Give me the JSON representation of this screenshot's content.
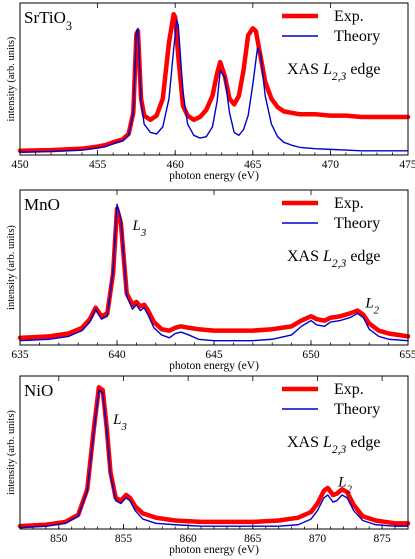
{
  "chart_data": [
    {
      "type": "line",
      "sample": "SrTiO",
      "sample_sub": "3",
      "xlabel": "photon energy (eV)",
      "ylabel": "intensity (arb. units)",
      "xlim": [
        450,
        475
      ],
      "xticks": [
        450,
        455,
        460,
        465,
        470,
        475
      ],
      "ylim": [
        0,
        1.08
      ],
      "grid": false,
      "legend": {
        "placement": "top-right",
        "edge_label": "XAS ",
        "edge_sym": "L",
        "edge_sub": "2,3",
        "edge_tail": " edge"
      },
      "peak_labels": [],
      "series": [
        {
          "name": "Exp.",
          "color": "#ff0000",
          "width": 4.5,
          "x": [
            450.0,
            452.0,
            454.0,
            455.0,
            455.5,
            456.0,
            456.3,
            456.6,
            457.0,
            457.3,
            457.5,
            457.6,
            457.8,
            458.0,
            458.4,
            458.8,
            459.2,
            459.6,
            459.9,
            460.0,
            460.2,
            460.5,
            460.8,
            461.2,
            461.6,
            462.0,
            462.4,
            462.7,
            462.9,
            463.2,
            463.5,
            463.8,
            464.1,
            464.4,
            464.7,
            465.0,
            465.2,
            465.5,
            465.8,
            466.2,
            466.6,
            467.0,
            467.5,
            468.0,
            469.0,
            470.0,
            471.0,
            472.0,
            473.0,
            474.0,
            475.0
          ],
          "y": [
            0.03,
            0.035,
            0.045,
            0.06,
            0.07,
            0.09,
            0.1,
            0.11,
            0.15,
            0.3,
            0.86,
            0.88,
            0.4,
            0.28,
            0.25,
            0.28,
            0.4,
            0.8,
            1.0,
            0.98,
            0.7,
            0.35,
            0.28,
            0.25,
            0.27,
            0.32,
            0.42,
            0.58,
            0.66,
            0.56,
            0.4,
            0.36,
            0.42,
            0.6,
            0.85,
            0.9,
            0.88,
            0.7,
            0.52,
            0.4,
            0.34,
            0.31,
            0.3,
            0.29,
            0.29,
            0.28,
            0.28,
            0.27,
            0.27,
            0.27,
            0.27
          ]
        },
        {
          "name": "Theory",
          "color": "#0000cc",
          "width": 1.4,
          "x": [
            450.0,
            452.0,
            454.0,
            455.0,
            455.5,
            456.0,
            456.3,
            456.6,
            457.0,
            457.3,
            457.5,
            457.6,
            457.8,
            458.0,
            458.4,
            458.8,
            459.2,
            459.6,
            459.9,
            460.1,
            460.2,
            460.5,
            460.8,
            461.2,
            461.6,
            462.0,
            462.4,
            462.7,
            462.9,
            463.2,
            463.5,
            463.8,
            464.1,
            464.4,
            464.7,
            465.0,
            465.3,
            465.5,
            465.8,
            466.2,
            466.6,
            467.0,
            467.5,
            468.0,
            469.0,
            470.0,
            471.0,
            472.0,
            473.0,
            474.0,
            475.0
          ],
          "y": [
            0.02,
            0.025,
            0.035,
            0.05,
            0.06,
            0.08,
            0.09,
            0.1,
            0.14,
            0.3,
            0.88,
            0.9,
            0.38,
            0.22,
            0.16,
            0.15,
            0.2,
            0.4,
            0.75,
            0.96,
            0.92,
            0.45,
            0.22,
            0.14,
            0.12,
            0.13,
            0.2,
            0.38,
            0.6,
            0.55,
            0.3,
            0.16,
            0.14,
            0.18,
            0.28,
            0.5,
            0.76,
            0.72,
            0.42,
            0.22,
            0.13,
            0.09,
            0.07,
            0.055,
            0.045,
            0.04,
            0.035,
            0.03,
            0.03,
            0.03,
            0.03
          ]
        }
      ]
    },
    {
      "type": "line",
      "sample": "MnO",
      "sample_sub": "",
      "xlabel": "photon energy (eV)",
      "ylabel": "intensity (arb. units)",
      "xlim": [
        635,
        655
      ],
      "xticks": [
        635,
        640,
        645,
        650,
        655
      ],
      "ylim": [
        0,
        1.08
      ],
      "grid": false,
      "legend": {
        "placement": "top-right",
        "edge_label": "XAS ",
        "edge_sym": "L",
        "edge_sub": "2,3",
        "edge_tail": " edge"
      },
      "peak_labels": [
        {
          "sym": "L",
          "sub": "3",
          "x": 640.8,
          "y": 0.8
        },
        {
          "sym": "L",
          "sub": "2",
          "x": 652.8,
          "y": 0.26
        }
      ],
      "series": [
        {
          "name": "Exp.",
          "color": "#ff0000",
          "width": 4.5,
          "x": [
            635.0,
            636.5,
            637.5,
            638.2,
            638.6,
            638.9,
            639.2,
            639.5,
            639.8,
            640.0,
            640.2,
            640.5,
            640.8,
            641.0,
            641.2,
            641.4,
            641.6,
            641.9,
            642.3,
            642.7,
            643.0,
            643.3,
            643.7,
            644.2,
            645.0,
            646.0,
            647.0,
            648.0,
            649.0,
            649.5,
            650.0,
            650.3,
            650.7,
            651.0,
            651.5,
            652.0,
            652.4,
            652.7,
            653.0,
            653.5,
            654.0,
            655.0
          ],
          "y": [
            0.05,
            0.06,
            0.08,
            0.12,
            0.18,
            0.26,
            0.2,
            0.22,
            0.5,
            0.95,
            0.85,
            0.36,
            0.28,
            0.3,
            0.27,
            0.28,
            0.24,
            0.16,
            0.11,
            0.1,
            0.12,
            0.13,
            0.12,
            0.11,
            0.1,
            0.1,
            0.1,
            0.11,
            0.13,
            0.17,
            0.2,
            0.18,
            0.17,
            0.19,
            0.2,
            0.22,
            0.24,
            0.21,
            0.15,
            0.1,
            0.08,
            0.06
          ]
        },
        {
          "name": "Theory",
          "color": "#0000cc",
          "width": 1.4,
          "x": [
            635.0,
            636.5,
            637.5,
            638.2,
            638.6,
            638.9,
            639.2,
            639.5,
            639.8,
            640.0,
            640.2,
            640.5,
            640.8,
            641.0,
            641.2,
            641.4,
            641.6,
            641.9,
            642.3,
            642.7,
            643.0,
            643.3,
            643.7,
            644.2,
            645.0,
            646.0,
            647.0,
            648.0,
            649.0,
            649.5,
            650.0,
            650.3,
            650.7,
            651.0,
            651.5,
            652.0,
            652.4,
            652.7,
            653.0,
            653.5,
            654.0,
            655.0
          ],
          "y": [
            0.03,
            0.04,
            0.06,
            0.1,
            0.16,
            0.25,
            0.18,
            0.2,
            0.52,
            0.98,
            0.88,
            0.34,
            0.25,
            0.28,
            0.24,
            0.26,
            0.21,
            0.12,
            0.07,
            0.05,
            0.08,
            0.09,
            0.07,
            0.04,
            0.03,
            0.03,
            0.03,
            0.04,
            0.07,
            0.13,
            0.17,
            0.14,
            0.13,
            0.16,
            0.17,
            0.19,
            0.22,
            0.19,
            0.11,
            0.06,
            0.04,
            0.03
          ]
        }
      ]
    },
    {
      "type": "line",
      "sample": "NiO",
      "sample_sub": "",
      "xlabel": "photon energy (eV)",
      "ylabel": "intensity (arb. units)",
      "xlim": [
        847,
        877
      ],
      "xticks": [
        850,
        855,
        860,
        865,
        870,
        875
      ],
      "ylim": [
        0,
        1.08
      ],
      "grid": false,
      "legend": {
        "placement": "top-right",
        "edge_label": "XAS ",
        "edge_sym": "L",
        "edge_sub": "2,3",
        "edge_tail": " edge"
      },
      "peak_labels": [
        {
          "sym": "L",
          "sub": "3",
          "x": 854.2,
          "y": 0.74
        },
        {
          "sym": "L",
          "sub": "2",
          "x": 871.6,
          "y": 0.3
        }
      ],
      "series": [
        {
          "name": "Exp.",
          "color": "#ff0000",
          "width": 4.5,
          "x": [
            847.0,
            849.0,
            850.5,
            851.5,
            852.2,
            852.7,
            853.1,
            853.4,
            853.7,
            854.0,
            854.4,
            854.8,
            855.2,
            855.5,
            855.9,
            856.5,
            857.5,
            859.0,
            861.0,
            863.0,
            865.0,
            867.0,
            868.5,
            869.5,
            870.0,
            870.5,
            870.8,
            871.2,
            871.5,
            871.9,
            872.3,
            872.8,
            873.5,
            874.5,
            876.0,
            877.0
          ],
          "y": [
            0.02,
            0.03,
            0.05,
            0.1,
            0.28,
            0.7,
            1.0,
            0.98,
            0.72,
            0.4,
            0.22,
            0.2,
            0.24,
            0.22,
            0.16,
            0.11,
            0.08,
            0.06,
            0.05,
            0.05,
            0.05,
            0.06,
            0.08,
            0.12,
            0.18,
            0.27,
            0.29,
            0.24,
            0.25,
            0.28,
            0.26,
            0.17,
            0.09,
            0.06,
            0.04,
            0.04
          ]
        },
        {
          "name": "Theory",
          "color": "#0000cc",
          "width": 1.4,
          "x": [
            847.0,
            849.0,
            850.5,
            851.5,
            852.2,
            852.7,
            853.1,
            853.4,
            853.7,
            854.0,
            854.4,
            854.8,
            855.2,
            855.5,
            855.9,
            856.5,
            857.5,
            859.0,
            861.0,
            863.0,
            865.0,
            867.0,
            868.5,
            869.5,
            870.0,
            870.5,
            870.8,
            871.2,
            871.5,
            871.9,
            872.3,
            872.8,
            873.5,
            874.5,
            876.0,
            877.0
          ],
          "y": [
            0.01,
            0.02,
            0.04,
            0.09,
            0.27,
            0.68,
            0.98,
            0.96,
            0.7,
            0.38,
            0.2,
            0.18,
            0.22,
            0.2,
            0.13,
            0.07,
            0.04,
            0.03,
            0.02,
            0.02,
            0.02,
            0.02,
            0.03,
            0.07,
            0.13,
            0.22,
            0.24,
            0.19,
            0.2,
            0.24,
            0.22,
            0.13,
            0.06,
            0.03,
            0.02,
            0.02
          ]
        }
      ]
    }
  ]
}
